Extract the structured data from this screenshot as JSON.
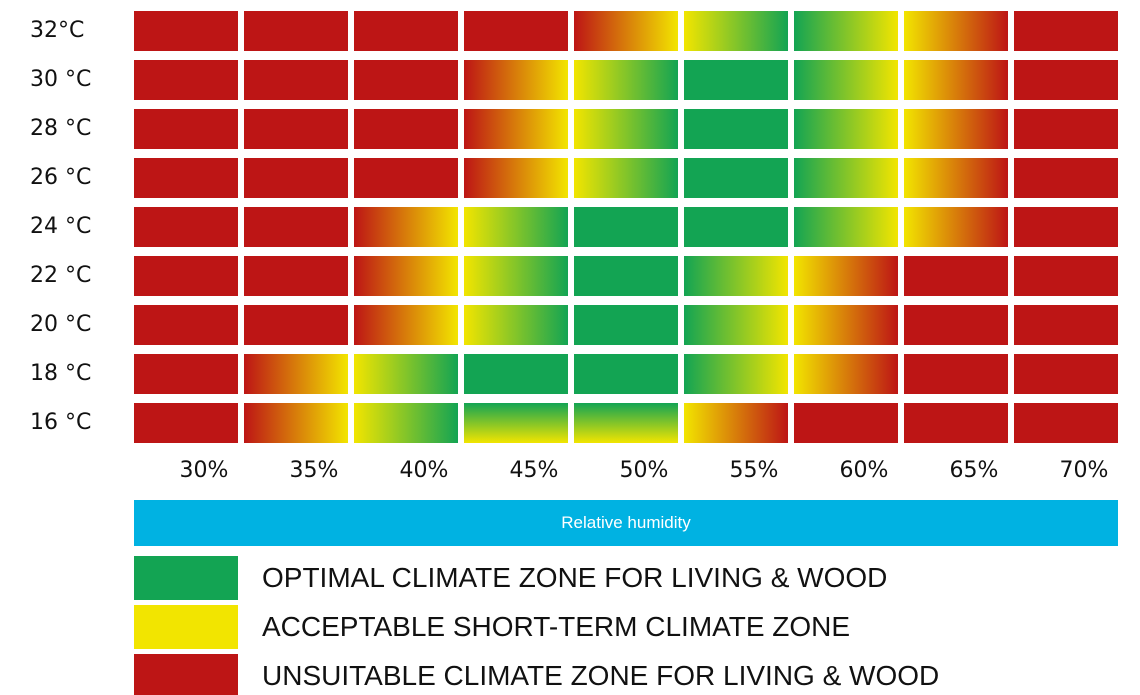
{
  "colors": {
    "optimal": "#13a453",
    "acceptable": "#f2e500",
    "unsuitable": "#bd1515",
    "axis_bar": "#00b2e2"
  },
  "chart_data": {
    "type": "heatmap",
    "xlabel": "Relative humidity",
    "x_categories": [
      "30%",
      "35%",
      "40%",
      "45%",
      "50%",
      "55%",
      "60%",
      "65%",
      "70%"
    ],
    "y_categories": [
      "32°C",
      "30 °C",
      "28 °C",
      "26 °C",
      "24 °C",
      "22 °C",
      "20 °C",
      "18 °C",
      "16 °C"
    ],
    "cells": [
      [
        "R",
        "R",
        "R",
        "R",
        "R>Y",
        "Y>G",
        "G>Y",
        "Y>R",
        "R"
      ],
      [
        "R",
        "R",
        "R",
        "R>Y",
        "Y>G",
        "G",
        "G>Y",
        "Y>R",
        "R"
      ],
      [
        "R",
        "R",
        "R",
        "R>Y",
        "Y>G",
        "G",
        "G>Y",
        "Y>R",
        "R"
      ],
      [
        "R",
        "R",
        "R",
        "R>Y",
        "Y>G",
        "G",
        "G>Y",
        "Y>R",
        "R"
      ],
      [
        "R",
        "R",
        "R>Y",
        "Y>G",
        "G",
        "G",
        "G>Y",
        "Y>R",
        "R"
      ],
      [
        "R",
        "R",
        "R>Y",
        "Y>G",
        "G",
        "G>Y",
        "Y>R",
        "R",
        "R"
      ],
      [
        "R",
        "R",
        "R>Y",
        "Y>G",
        "G",
        "G>Y",
        "Y>R",
        "R",
        "R"
      ],
      [
        "R",
        "R>Y",
        "Y>G",
        "G",
        "G",
        "G>Y",
        "Y>R",
        "R",
        "R"
      ],
      [
        "R",
        "R>Y",
        "Y>G",
        "G|Y",
        "G|Y",
        "Y>R",
        "R",
        "R",
        "R"
      ]
    ],
    "legend": [
      {
        "label": "OPTIMAL CLIMATE ZONE FOR LIVING & WOOD",
        "zone": "optimal"
      },
      {
        "label": "ACCEPTABLE SHORT-TERM CLIMATE ZONE",
        "zone": "acceptable"
      },
      {
        "label": "UNSUITABLE CLIMATE ZONE FOR LIVING & WOOD",
        "zone": "unsuitable"
      }
    ]
  }
}
